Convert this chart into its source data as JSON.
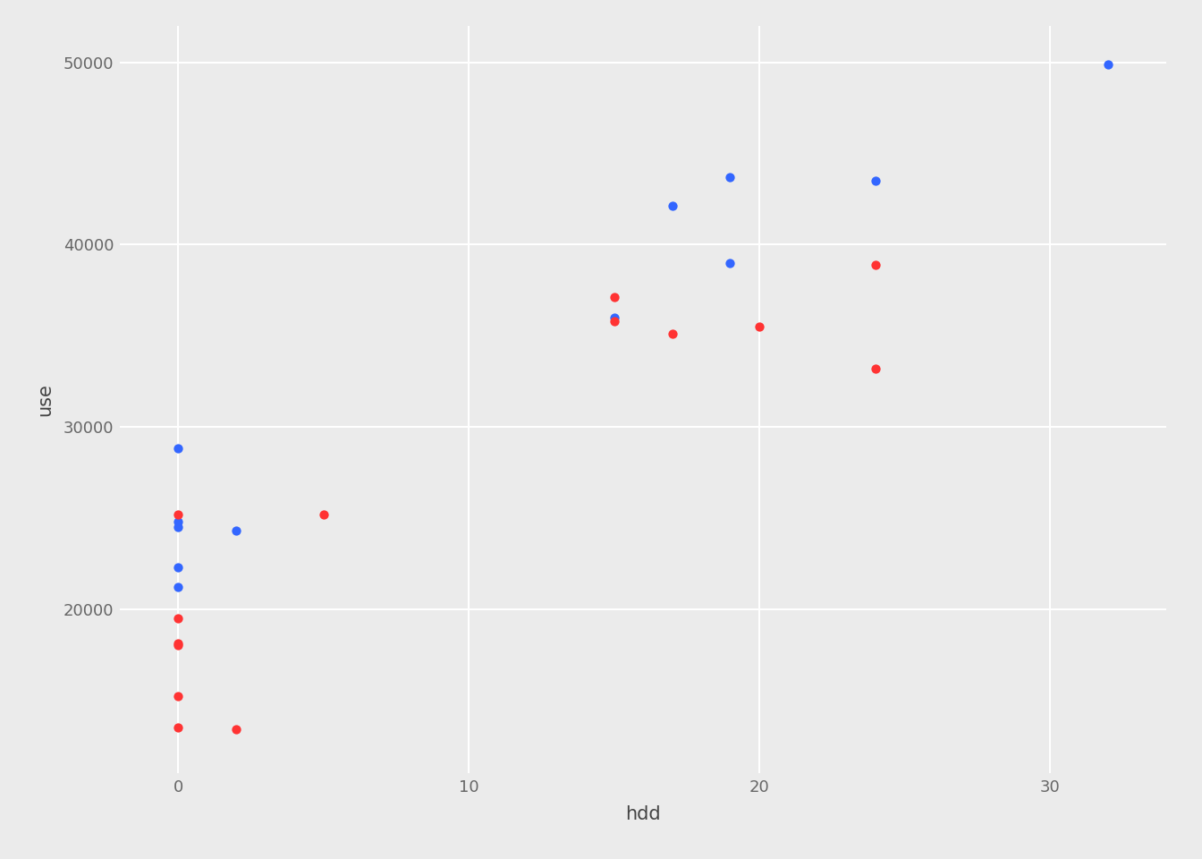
{
  "blue_x": [
    0,
    0,
    0,
    0,
    0,
    2,
    15,
    17,
    19,
    19,
    24,
    32
  ],
  "blue_y": [
    28800,
    24800,
    24500,
    22300,
    21200,
    24300,
    36000,
    42100,
    43700,
    39000,
    43500,
    49900
  ],
  "red_x": [
    0,
    0,
    0,
    0,
    0,
    0,
    2,
    5,
    15,
    15,
    17,
    20,
    24,
    24
  ],
  "red_y": [
    25200,
    19500,
    18100,
    18000,
    15200,
    13500,
    13400,
    25200,
    37100,
    35800,
    35100,
    35500,
    38900,
    33200
  ],
  "blue_color": "#3366FF",
  "red_color": "#FF3333",
  "background_color": "#EBEBEB",
  "panel_bg": "#EBEBEB",
  "grid_color": "#FFFFFF",
  "xlabel": "hdd",
  "ylabel": "use",
  "xlim": [
    -2,
    34
  ],
  "ylim": [
    11000,
    52000
  ],
  "xticks": [
    0,
    10,
    20,
    30
  ],
  "yticks": [
    20000,
    30000,
    40000,
    50000
  ],
  "marker_size": 55,
  "axis_label_fontsize": 15,
  "tick_label_fontsize": 13,
  "tick_label_color": "#666666",
  "axis_label_color": "#444444"
}
